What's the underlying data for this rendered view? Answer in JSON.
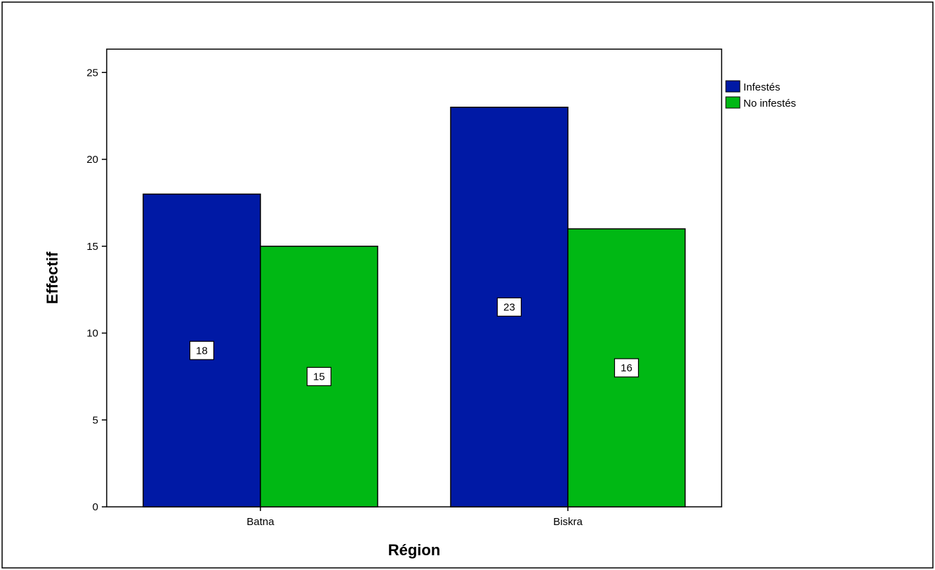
{
  "chart_data": {
    "type": "bar",
    "categories": [
      "Batna",
      "Biskra"
    ],
    "series": [
      {
        "name": "Infestés",
        "values": [
          18,
          23
        ],
        "color": "#0019A5"
      },
      {
        "name": "No infestés",
        "values": [
          15,
          16
        ],
        "color": "#00B814"
      }
    ],
    "xlabel": "Région",
    "ylabel": "Effectif",
    "ylim": [
      0,
      26.3
    ],
    "yticks": [
      0,
      5,
      10,
      15,
      20,
      25
    ],
    "grid": false,
    "legend_position": "top-right",
    "data_labels": true
  }
}
